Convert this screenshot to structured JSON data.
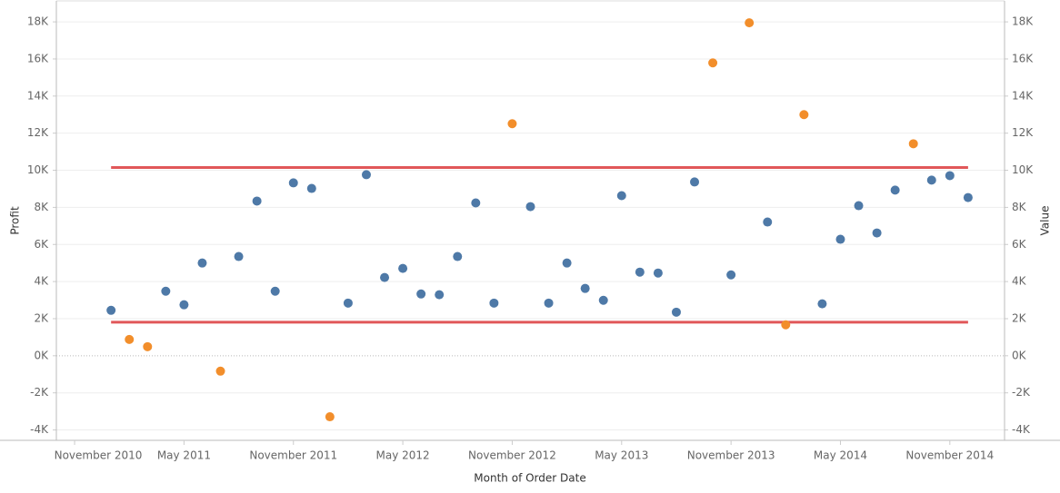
{
  "chart_data": {
    "type": "scatter",
    "x_label": "Month of Order Date",
    "y_label": "Profit",
    "y2_label": "Value",
    "x": [
      "2011-01",
      "2011-02",
      "2011-03",
      "2011-04",
      "2011-05",
      "2011-06",
      "2011-07",
      "2011-08",
      "2011-09",
      "2011-10",
      "2011-11",
      "2011-12",
      "2012-01",
      "2012-02",
      "2012-03",
      "2012-04",
      "2012-05",
      "2012-06",
      "2012-07",
      "2012-08",
      "2012-09",
      "2012-10",
      "2012-11",
      "2012-12",
      "2013-01",
      "2013-02",
      "2013-03",
      "2013-04",
      "2013-05",
      "2013-06",
      "2013-07",
      "2013-08",
      "2013-09",
      "2013-10",
      "2013-11",
      "2013-12",
      "2014-01",
      "2014-02",
      "2014-03",
      "2014-04",
      "2014-05",
      "2014-06",
      "2014-07",
      "2014-08",
      "2014-09",
      "2014-10",
      "2014-11",
      "2014-12"
    ],
    "values": [
      2450,
      880,
      490,
      3480,
      2750,
      5000,
      -830,
      5350,
      8340,
      3480,
      9320,
      9020,
      -3290,
      2840,
      9760,
      4220,
      4710,
      3330,
      3290,
      5350,
      8240,
      2840,
      12510,
      8040,
      2840,
      5000,
      3630,
      2990,
      8630,
      4510,
      4460,
      2350,
      9370,
      15790,
      4360,
      17950,
      7210,
      1670,
      13000,
      2800,
      6280,
      8090,
      6620,
      8930,
      11430,
      9470,
      9710,
      8530
    ],
    "point_color": "#4e79a7",
    "outlier_color": "#f28e2b",
    "reference_lines": [
      10150,
      1810
    ],
    "reference_color": "#e15759",
    "xlim": [
      "2010-10",
      "2015-02"
    ],
    "xticks": [
      {
        "value": "2010-11",
        "label": "November 2010"
      },
      {
        "value": "2011-05",
        "label": "May 2011"
      },
      {
        "value": "2011-11",
        "label": "November 2011"
      },
      {
        "value": "2012-05",
        "label": "May 2012"
      },
      {
        "value": "2012-11",
        "label": "November 2012"
      },
      {
        "value": "2013-05",
        "label": "May 2013"
      },
      {
        "value": "2013-11",
        "label": "November 2013"
      },
      {
        "value": "2014-05",
        "label": "May 2014"
      },
      {
        "value": "2014-11",
        "label": "November 2014"
      }
    ],
    "ylim": [
      -4560,
      19130
    ],
    "yticks": [
      {
        "value": -4000,
        "label": "-4K"
      },
      {
        "value": -2000,
        "label": "-2K"
      },
      {
        "value": 0,
        "label": "0K"
      },
      {
        "value": 2000,
        "label": "2K"
      },
      {
        "value": 4000,
        "label": "4K"
      },
      {
        "value": 6000,
        "label": "6K"
      },
      {
        "value": 8000,
        "label": "8K"
      },
      {
        "value": 10000,
        "label": "10K"
      },
      {
        "value": 12000,
        "label": "12K"
      },
      {
        "value": 14000,
        "label": "14K"
      },
      {
        "value": 16000,
        "label": "16K"
      },
      {
        "value": 18000,
        "label": "18K"
      }
    ],
    "y2lim": [
      -4560,
      19130
    ],
    "y2ticks": [
      {
        "value": -4000,
        "label": "-4K"
      },
      {
        "value": -2000,
        "label": "-2K"
      },
      {
        "value": 0,
        "label": "0K"
      },
      {
        "value": 2000,
        "label": "2K"
      },
      {
        "value": 4000,
        "label": "4K"
      },
      {
        "value": 6000,
        "label": "6K"
      },
      {
        "value": 8000,
        "label": "8K"
      },
      {
        "value": 10000,
        "label": "10K"
      },
      {
        "value": 12000,
        "label": "12K"
      },
      {
        "value": 14000,
        "label": "14K"
      },
      {
        "value": 16000,
        "label": "16K"
      },
      {
        "value": 18000,
        "label": "18K"
      }
    ],
    "grid": true
  }
}
